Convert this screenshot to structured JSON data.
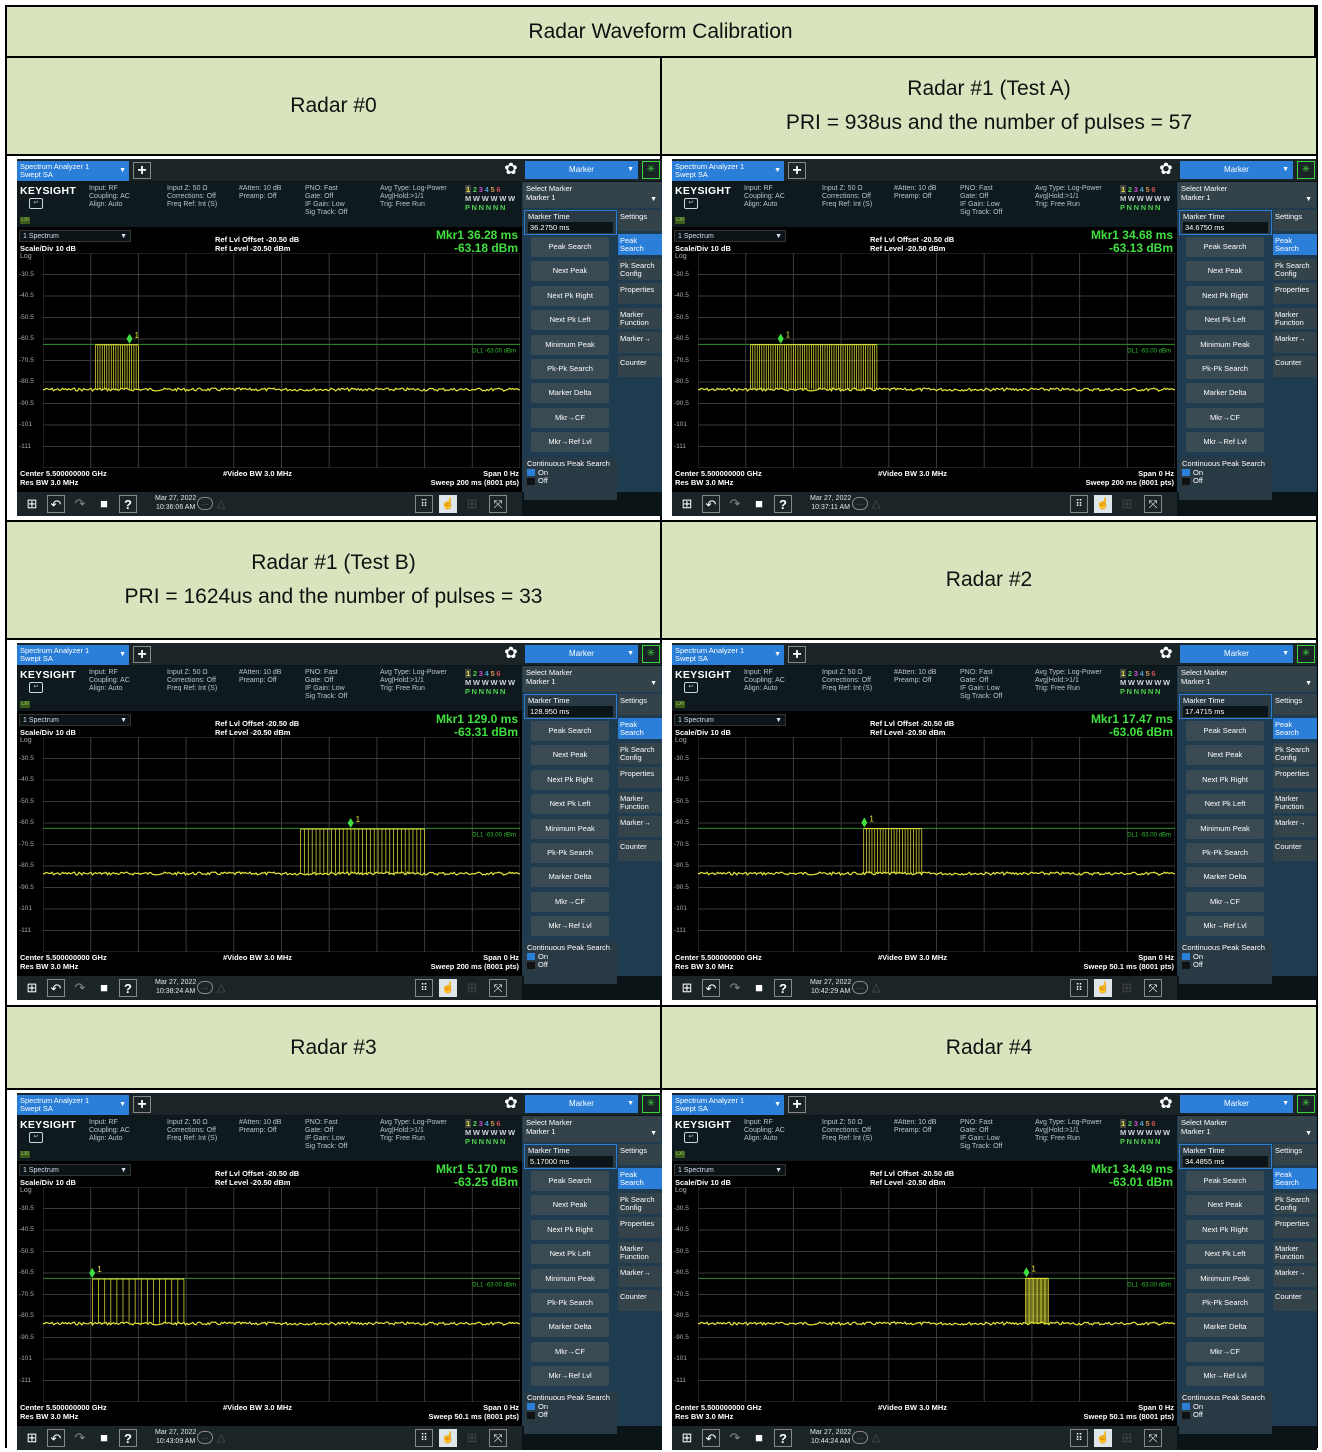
{
  "table_title": "Radar Waveform Calibration",
  "sections": [
    {
      "title": "Radar #0",
      "subtitle": "",
      "screen": {
        "mkr_time": "Mkr1  36.28 ms",
        "mkr_amp": "-63.18 dBm",
        "marker_time_value": "36.2750 ms",
        "sweep": "Sweep 200 ms (8001 pts)",
        "date": "Mar 27, 2022",
        "time": "10:36:06 AM",
        "chart_data": {
          "type": "line",
          "x_unit": "ms",
          "sweep_ms": 200,
          "pulses": {
            "count": 20,
            "start_ms": 22,
            "end_ms": 40,
            "level_dbm": -63.2
          },
          "noise_floor_dbm": -84,
          "marker": {
            "x_ms": 36.28,
            "y_dbm": -63.18
          },
          "ylim": [
            -120.5,
            -20.5
          ]
        }
      }
    },
    {
      "title": "Radar #1 (Test A)",
      "subtitle": "PRI = 938us and the number of pulses = 57",
      "screen": {
        "mkr_time": "Mkr1  34.68 ms",
        "mkr_amp": "-63.13 dBm",
        "marker_time_value": "34.6750 ms",
        "sweep": "Sweep 200 ms (8001 pts)",
        "date": "Mar 27, 2022",
        "time": "10:37:11 AM",
        "chart_data": {
          "type": "line",
          "x_unit": "ms",
          "sweep_ms": 200,
          "pulses": {
            "count": 57,
            "start_ms": 22,
            "end_ms": 75,
            "level_dbm": -63.1
          },
          "noise_floor_dbm": -84,
          "marker": {
            "x_ms": 34.68,
            "y_dbm": -63.13
          },
          "ylim": [
            -120.5,
            -20.5
          ]
        }
      }
    },
    {
      "title": "Radar #1 (Test B)",
      "subtitle": "PRI = 1624us and the number of pulses = 33",
      "screen": {
        "mkr_time": "Mkr1  129.0 ms",
        "mkr_amp": "-63.31 dBm",
        "marker_time_value": "128.950 ms",
        "sweep": "Sweep 200 ms (8001 pts)",
        "date": "Mar 27, 2022",
        "time": "10:38:24 AM",
        "chart_data": {
          "type": "line",
          "x_unit": "ms",
          "sweep_ms": 200,
          "pulses": {
            "count": 33,
            "start_ms": 108,
            "end_ms": 160,
            "level_dbm": -63.3
          },
          "noise_floor_dbm": -84,
          "marker": {
            "x_ms": 129.0,
            "y_dbm": -63.31
          },
          "ylim": [
            -120.5,
            -20.5
          ]
        }
      }
    },
    {
      "title": "Radar #2",
      "subtitle": "",
      "screen": {
        "mkr_time": "Mkr1  17.47 ms",
        "mkr_amp": "-63.06 dBm",
        "marker_time_value": "17.4715 ms",
        "sweep": "Sweep 50.1 ms (8001 pts)",
        "date": "Mar 27, 2022",
        "time": "10:42:29 AM",
        "chart_data": {
          "type": "line",
          "x_unit": "ms",
          "sweep_ms": 50.1,
          "pulses": {
            "count": 22,
            "start_ms": 17.4,
            "end_ms": 23.5,
            "level_dbm": -63.1
          },
          "noise_floor_dbm": -84,
          "marker": {
            "x_ms": 17.47,
            "y_dbm": -63.06
          },
          "ylim": [
            -120.5,
            -20.5
          ]
        }
      }
    },
    {
      "title": "Radar #3",
      "subtitle": "",
      "screen": {
        "mkr_time": "Mkr1  5.170 ms",
        "mkr_amp": "-63.25 dBm",
        "marker_time_value": "5.17000 ms",
        "sweep": "Sweep 50.1 ms (8001 pts)",
        "date": "Mar 27, 2022",
        "time": "10:43:09 AM",
        "chart_data": {
          "type": "line",
          "x_unit": "ms",
          "sweep_ms": 50.1,
          "pulses": {
            "count": 16,
            "start_ms": 5.2,
            "end_ms": 14.8,
            "level_dbm": -63.3
          },
          "noise_floor_dbm": -84,
          "marker": {
            "x_ms": 5.17,
            "y_dbm": -63.25
          },
          "ylim": [
            -120.5,
            -20.5
          ]
        }
      }
    },
    {
      "title": "Radar #4",
      "subtitle": "",
      "screen": {
        "mkr_time": "Mkr1  34.49 ms",
        "mkr_amp": "-63.01 dBm",
        "marker_time_value": "34.4855 ms",
        "sweep": "Sweep 50.1 ms (8001 pts)",
        "date": "Mar 27, 2022",
        "time": "10:44:24 AM",
        "chart_data": {
          "type": "line",
          "x_unit": "ms",
          "sweep_ms": 50.1,
          "pulses": {
            "count": 18,
            "start_ms": 34.4,
            "end_ms": 36.8,
            "level_dbm": -63.0
          },
          "noise_floor_dbm": -84,
          "marker": {
            "x_ms": 34.49,
            "y_dbm": -63.01
          },
          "ylim": [
            -120.5,
            -20.5
          ]
        }
      }
    }
  ],
  "common": {
    "tab_line1": "Spectrum Analyzer 1",
    "tab_line2": "Swept SA",
    "plus": "+",
    "gear": "✿",
    "mode": "Marker",
    "logo": "KEYSIGHT",
    "input": "Input: RF",
    "coupling": "Coupling: AC",
    "align": "Align: Auto",
    "inputz": "Input Z: 50 Ω",
    "corrections": "Corrections: Off",
    "freqref": "Freq Ref: Int (S)",
    "atten": "#Atten: 10 dB",
    "preamp": "Preamp: Off",
    "pno": "PNO: Fast",
    "gate": "Gate: Off",
    "ifgain": "IF Gain: Low",
    "sigtrack": "Sig Track: Off",
    "avgtype": "Avg Type: Log-Power",
    "avghold": "Avg|Hold:>1/1",
    "trig": "Trig: Free Run",
    "trace_nums": [
      "1",
      "2",
      "3",
      "4",
      "5",
      "6"
    ],
    "trace_m": "M W W W W W",
    "trace_p": "P N N N N N",
    "lxi": "LXI",
    "window": "1 Spectrum",
    "scale": "Scale/Div 10 dB",
    "log": "Log",
    "ref_offset": "Ref Lvl Offset -20.50 dB",
    "ref_level": "Ref Level -20.50 dBm",
    "y_ticks": [
      "-30.5",
      "-40.5",
      "-50.5",
      "-60.5",
      "-70.5",
      "-80.5",
      "-90.5",
      "-101",
      "-111"
    ],
    "dl_label": "DL1 -63.00 dBm",
    "center": "Center 5.500000000 GHz",
    "rbw": "Res BW 3.0 MHz",
    "vbw": "#Video BW 3.0 MHz",
    "span": "Span 0 Hz",
    "select_marker": "Select Marker",
    "marker1": "Marker 1",
    "marker_time_label": "Marker Time",
    "buttons": [
      "Peak Search",
      "Next Peak",
      "Next Pk Right",
      "Next Pk Left",
      "Minimum Peak",
      "Pk-Pk Search",
      "Marker Delta",
      "Mkr→CF",
      "Mkr→Ref Lvl"
    ],
    "tabs": [
      "Settings",
      "Peak Search",
      "Pk Search Config",
      "Properties",
      "Marker Function",
      "Marker→",
      "Counter"
    ],
    "cps_label": "Continuous Peak Search",
    "on": "On",
    "off": "Off",
    "marker_num": "1",
    "colors": {
      "header_bg": "#d7e4bd",
      "accent": "#2b7fd9",
      "trace": "#e6e63a",
      "marker": "#3fe03f",
      "display_line": "#2f8f2f"
    }
  }
}
